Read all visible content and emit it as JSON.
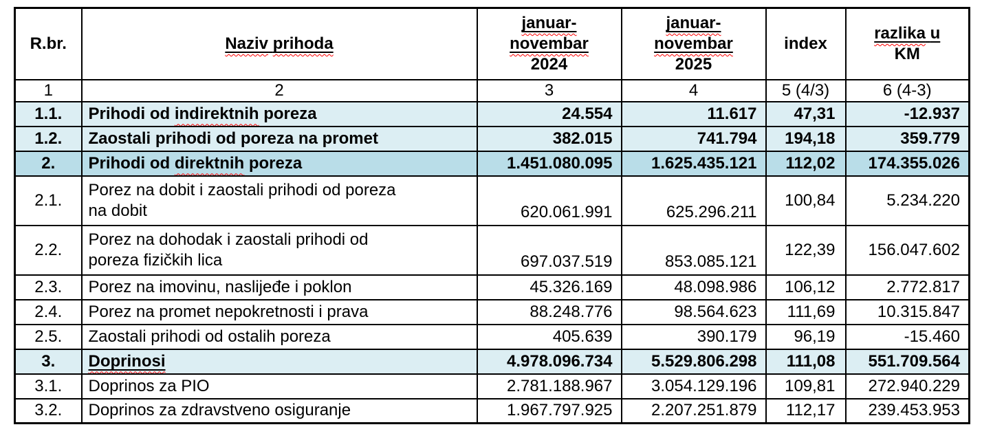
{
  "table": {
    "columns": [
      {
        "id": "rbr",
        "header_lines": [
          {
            "text": "R.br."
          }
        ]
      },
      {
        "id": "naziv",
        "header_lines": [
          {
            "text": "Naziv prihoda",
            "underline": true,
            "squiggle_words": [
              "Naziv",
              "prihoda"
            ]
          }
        ]
      },
      {
        "id": "y2024",
        "header_lines": [
          {
            "text": "januar-",
            "underline": true,
            "squiggle_words": [
              "januar-"
            ]
          },
          {
            "text": "novembar",
            "underline": true,
            "squiggle_words": [
              "novembar"
            ]
          },
          {
            "text": "2024"
          }
        ]
      },
      {
        "id": "y2025",
        "header_lines": [
          {
            "text": "januar-",
            "underline": true,
            "squiggle_words": [
              "januar-"
            ]
          },
          {
            "text": "novembar",
            "underline": true,
            "squiggle_words": [
              "novembar"
            ]
          },
          {
            "text": "2025"
          }
        ]
      },
      {
        "id": "index",
        "header_lines": [
          {
            "text": "index"
          }
        ]
      },
      {
        "id": "razlika",
        "header_lines": [
          {
            "text": "razlika u",
            "underline": true,
            "squiggle_words": [
              "razlika"
            ]
          },
          {
            "text": "KM"
          }
        ]
      }
    ],
    "column_numbers": [
      "1",
      "2",
      "3",
      "4",
      "5 (4/3)",
      "6 (4-3)"
    ],
    "rows": [
      {
        "num": "1.1.",
        "name_lines": [
          "Prihodi od indirektnih poreza"
        ],
        "squiggle_words": [
          "indirektnih"
        ],
        "underline_words": [],
        "y2024": "24.554",
        "y2025": "11.617",
        "index": "47,31",
        "diff": "-12.937",
        "highlight": "light",
        "bold": true,
        "tall": false
      },
      {
        "num": "1.2.",
        "name_lines": [
          "Zaostali prihodi od poreza na promet"
        ],
        "squiggle_words": [],
        "underline_words": [],
        "y2024": "382.015",
        "y2025": "741.794",
        "index": "194,18",
        "diff": "359.779",
        "highlight": "light",
        "bold": true,
        "tall": false
      },
      {
        "num": "2.",
        "name_lines": [
          "Prihodi od direktnih poreza"
        ],
        "squiggle_words": [
          "direktnih"
        ],
        "underline_words": [],
        "y2024": "1.451.080.095",
        "y2025": "1.625.435.121",
        "index": "112,02",
        "diff": "174.355.026",
        "highlight": "dark",
        "bold": true,
        "tall": false
      },
      {
        "num": "2.1.",
        "name_lines": [
          "Porez na dobit i zaostali prihodi od poreza",
          "na dobit"
        ],
        "squiggle_words": [],
        "underline_words": [],
        "y2024": "620.061.991",
        "y2025": "625.296.211",
        "index": "100,84",
        "diff": "5.234.220",
        "highlight": "none",
        "bold": false,
        "tall": true
      },
      {
        "num": "2.2.",
        "name_lines": [
          "Porez na dohodak i zaostali prihodi od",
          "poreza fizičkih lica"
        ],
        "squiggle_words": [],
        "underline_words": [],
        "y2024": "697.037.519",
        "y2025": "853.085.121",
        "index": "122,39",
        "diff": "156.047.602",
        "highlight": "none",
        "bold": false,
        "tall": true
      },
      {
        "num": "2.3.",
        "name_lines": [
          "Porez na imovinu, naslijeđe i poklon"
        ],
        "squiggle_words": [],
        "underline_words": [],
        "y2024": "45.326.169",
        "y2025": "48.098.986",
        "index": "106,12",
        "diff": "2.772.817",
        "highlight": "none",
        "bold": false,
        "tall": false
      },
      {
        "num": "2.4.",
        "name_lines": [
          "Porez na promet nepokretnosti i prava"
        ],
        "squiggle_words": [],
        "underline_words": [],
        "y2024": "88.248.776",
        "y2025": "98.564.623",
        "index": "111,69",
        "diff": "10.315.847",
        "highlight": "none",
        "bold": false,
        "tall": false
      },
      {
        "num": "2.5.",
        "name_lines": [
          "Zaostali prihodi od ostalih poreza"
        ],
        "squiggle_words": [],
        "underline_words": [],
        "y2024": "405.639",
        "y2025": "390.179",
        "index": "96,19",
        "diff": "-15.460",
        "highlight": "none",
        "bold": false,
        "tall": false
      },
      {
        "num": "3.",
        "name_lines": [
          "Doprinosi"
        ],
        "squiggle_words": [
          "Doprinosi"
        ],
        "underline_words": [
          "Doprinosi"
        ],
        "y2024": "4.978.096.734",
        "y2025": "5.529.806.298",
        "index": "111,08",
        "diff": "551.709.564",
        "highlight": "light",
        "bold": true,
        "tall": false
      },
      {
        "num": "3.1.",
        "name_lines": [
          "Doprinos za PIO"
        ],
        "squiggle_words": [],
        "underline_words": [],
        "y2024": "2.781.188.967",
        "y2025": "3.054.129.196",
        "index": "109,81",
        "diff": "272.940.229",
        "highlight": "none",
        "bold": false,
        "tall": false
      },
      {
        "num": "3.2.",
        "name_lines": [
          "Doprinos za zdravstveno osiguranje"
        ],
        "squiggle_words": [],
        "underline_words": [],
        "y2024": "1.967.797.925",
        "y2025": "2.207.251.879",
        "index": "112,17",
        "diff": "239.453.953",
        "highlight": "none",
        "bold": false,
        "tall": false
      }
    ],
    "colors": {
      "highlight_light": "#dceef3",
      "highlight_dark": "#b9dde8",
      "border": "#000000",
      "squiggle": "#ff0000"
    }
  }
}
